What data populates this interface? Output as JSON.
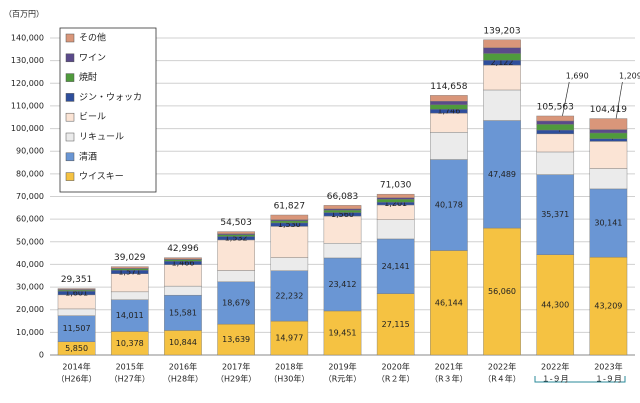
{
  "chart_data": {
    "type": "stacked_bar",
    "y_unit_label": "（百万円）",
    "categories": [
      "2014年",
      "2015年",
      "2016年",
      "2017年",
      "2018年",
      "2019年",
      "2020年",
      "2021年",
      "2022年",
      "2022年",
      "2023年"
    ],
    "category_sublabels": [
      "（H26年）",
      "（H27年）",
      "（H28年）",
      "（H29年）",
      "（H30年）",
      "（R元年）",
      "（R２年）",
      "（R３年）",
      "（R４年）",
      "１-９月",
      "１-９月"
    ],
    "ylim": [
      0,
      140000
    ],
    "yticks": [
      {
        "value": 0,
        "label": "0"
      },
      {
        "value": 10000,
        "label": "10,000"
      },
      {
        "value": 20000,
        "label": "20,000"
      },
      {
        "value": 30000,
        "label": "30,000"
      },
      {
        "value": 40000,
        "label": "40,000"
      },
      {
        "value": 50000,
        "label": "50,000"
      },
      {
        "value": 60000,
        "label": "60,000"
      },
      {
        "value": 70000,
        "label": "70,000"
      },
      {
        "value": 80000,
        "label": "80,000"
      },
      {
        "value": 90000,
        "label": "90,000"
      },
      {
        "value": 100000,
        "label": "100,000"
      },
      {
        "value": 110000,
        "label": "110,000"
      },
      {
        "value": 120000,
        "label": "120,000"
      },
      {
        "value": 130000,
        "label": "130,000"
      },
      {
        "value": 140000,
        "label": "140,000"
      }
    ],
    "grid": true,
    "totals": [
      29351,
      39029,
      42996,
      54503,
      61827,
      66083,
      71030,
      114658,
      139203,
      105563,
      104419
    ],
    "total_labels": [
      "29,351",
      "39,029",
      "42,996",
      "54,503",
      "61,827",
      "66,083",
      "71,030",
      "114,658",
      "139,203",
      "105,563",
      "104,419"
    ],
    "series": [
      {
        "name": "ウイスキー",
        "color": "#f5c242",
        "values": [
          5850,
          10378,
          10844,
          13639,
          14977,
          19451,
          27115,
          46144,
          56060,
          44300,
          43209
        ],
        "value_labels": [
          "5,850",
          "10,378",
          "10,844",
          "13,639",
          "14,977",
          "19,451",
          "27,115",
          "46,144",
          "56,060",
          "44,300",
          "43,209"
        ]
      },
      {
        "name": "清酒",
        "color": "#6a96d4",
        "values": [
          11507,
          14011,
          15581,
          18679,
          22232,
          23412,
          24141,
          40178,
          47489,
          35371,
          30141
        ],
        "value_labels": [
          "11,507",
          "14,011",
          "15,581",
          "18,679",
          "22,232",
          "23,412",
          "24,141",
          "40,178",
          "47,489",
          "35,371",
          "30,141"
        ]
      },
      {
        "name": "リキュール",
        "color": "#ebebeb",
        "values": [
          3000,
          3500,
          4000,
          5000,
          5800,
          6500,
          8500,
          12000,
          13500,
          10000,
          9000
        ]
      },
      {
        "name": "ビール",
        "color": "#fbe4d5",
        "values": [
          6200,
          8000,
          9500,
          13500,
          13800,
          12000,
          6500,
          8500,
          11000,
          8000,
          12000
        ]
      },
      {
        "name": "ジン・ウォッカ",
        "color": "#2e4e9c",
        "values": [
          1601,
          1571,
          1466,
          1532,
          1530,
          1560,
          1201,
          1746,
          2122,
          1690,
          1209
        ],
        "value_labels": [
          "1,601",
          "1,571",
          "1,466",
          "1,532",
          "1,530",
          "1,560",
          "1,201",
          "1,746",
          "2,122",
          "1,690",
          "1,209"
        ]
      },
      {
        "name": "焼酎",
        "color": "#4f9a3c",
        "values": [
          500,
          600,
          700,
          800,
          900,
          1000,
          1300,
          2000,
          3000,
          2500,
          2500
        ]
      },
      {
        "name": "ワイン",
        "color": "#5a4a8a",
        "values": [
          300,
          300,
          300,
          400,
          500,
          600,
          700,
          1500,
          2500,
          1500,
          1500
        ]
      },
      {
        "name": "その他",
        "color": "#d9967a",
        "values": [
          393,
          669,
          605,
          953,
          2088,
          1560,
          1573,
          2590,
          3532,
          2202,
          4860
        ]
      }
    ]
  }
}
